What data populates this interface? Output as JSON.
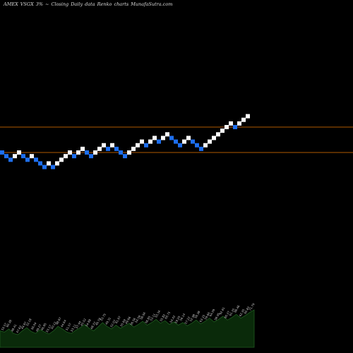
{
  "header": {
    "exchange": "AMEX",
    "symbol": "VSGX",
    "pct": "3%",
    "arrow": "~",
    "mode": "Closing",
    "period": "Daily",
    "kind": "data",
    "chart_word": "Renko",
    "site_word": "charts",
    "site": "MunafaSutra.com"
  },
  "colors": {
    "background": "#000000",
    "up_brick": "#ffffff",
    "down_brick": "#1e6ff0",
    "reference_line": "#b05a00",
    "volume_fill": "#0a2a0a",
    "volume_stroke": "#1f5a1f",
    "volume_label": "#cfcfcf"
  },
  "chart_data": {
    "type": "renko",
    "title": "",
    "xlabel": "",
    "ylabel": "",
    "grid": false,
    "reference_lines": [
      57.6,
      56.2
    ],
    "bricks": [
      {
        "level": 56.2,
        "dir": "down"
      },
      {
        "level": 56.0,
        "dir": "down"
      },
      {
        "level": 55.8,
        "dir": "down"
      },
      {
        "level": 56.0,
        "dir": "up"
      },
      {
        "level": 56.2,
        "dir": "up"
      },
      {
        "level": 56.0,
        "dir": "down"
      },
      {
        "level": 55.8,
        "dir": "down"
      },
      {
        "level": 56.0,
        "dir": "up"
      },
      {
        "level": 55.8,
        "dir": "down"
      },
      {
        "level": 55.6,
        "dir": "down"
      },
      {
        "level": 55.4,
        "dir": "down"
      },
      {
        "level": 55.6,
        "dir": "up"
      },
      {
        "level": 55.4,
        "dir": "down"
      },
      {
        "level": 55.6,
        "dir": "up"
      },
      {
        "level": 55.8,
        "dir": "up"
      },
      {
        "level": 56.0,
        "dir": "up"
      },
      {
        "level": 56.2,
        "dir": "up"
      },
      {
        "level": 56.0,
        "dir": "down"
      },
      {
        "level": 56.2,
        "dir": "up"
      },
      {
        "level": 56.4,
        "dir": "up"
      },
      {
        "level": 56.2,
        "dir": "down"
      },
      {
        "level": 56.0,
        "dir": "down"
      },
      {
        "level": 56.2,
        "dir": "up"
      },
      {
        "level": 56.4,
        "dir": "up"
      },
      {
        "level": 56.6,
        "dir": "up"
      },
      {
        "level": 56.4,
        "dir": "down"
      },
      {
        "level": 56.6,
        "dir": "up"
      },
      {
        "level": 56.4,
        "dir": "down"
      },
      {
        "level": 56.2,
        "dir": "down"
      },
      {
        "level": 56.0,
        "dir": "down"
      },
      {
        "level": 56.2,
        "dir": "up"
      },
      {
        "level": 56.4,
        "dir": "up"
      },
      {
        "level": 56.6,
        "dir": "up"
      },
      {
        "level": 56.8,
        "dir": "up"
      },
      {
        "level": 56.6,
        "dir": "down"
      },
      {
        "level": 56.8,
        "dir": "up"
      },
      {
        "level": 57.0,
        "dir": "up"
      },
      {
        "level": 56.8,
        "dir": "down"
      },
      {
        "level": 57.0,
        "dir": "up"
      },
      {
        "level": 57.2,
        "dir": "up"
      },
      {
        "level": 57.0,
        "dir": "down"
      },
      {
        "level": 56.8,
        "dir": "down"
      },
      {
        "level": 56.6,
        "dir": "down"
      },
      {
        "level": 56.8,
        "dir": "up"
      },
      {
        "level": 57.0,
        "dir": "up"
      },
      {
        "level": 56.8,
        "dir": "down"
      },
      {
        "level": 56.6,
        "dir": "down"
      },
      {
        "level": 56.4,
        "dir": "down"
      },
      {
        "level": 56.6,
        "dir": "up"
      },
      {
        "level": 56.8,
        "dir": "up"
      },
      {
        "level": 57.0,
        "dir": "up"
      },
      {
        "level": 57.2,
        "dir": "up"
      },
      {
        "level": 57.4,
        "dir": "up"
      },
      {
        "level": 57.6,
        "dir": "up"
      },
      {
        "level": 57.8,
        "dir": "up"
      },
      {
        "level": 57.6,
        "dir": "down"
      },
      {
        "level": 57.8,
        "dir": "up"
      },
      {
        "level": 58.0,
        "dir": "up"
      },
      {
        "level": 58.2,
        "dir": "up"
      }
    ],
    "volume": [
      2.6,
      2.4,
      2.9,
      2.2,
      2.0,
      2.6,
      3.1,
      2.5,
      2.2,
      2.8,
      2.4,
      2.1,
      2.6,
      3.3,
      2.9,
      2.4,
      2.2,
      2.7,
      3.1,
      3.6,
      3.0,
      2.6,
      3.2,
      3.9,
      3.3,
      2.9,
      3.5,
      3.0,
      3.4,
      3.8,
      3.2,
      3.6,
      4.1,
      3.5,
      3.9,
      4.4,
      3.8,
      4.2,
      3.6,
      4.0,
      3.5,
      3.9,
      3.4,
      3.8,
      4.3,
      3.7,
      4.1,
      4.6,
      4.0,
      4.4,
      4.9,
      4.3,
      4.7,
      5.2,
      4.6,
      5.0,
      5.5,
      5.9
    ],
    "volume_labels": [
      "53.57",
      "60.38",
      "48.41",
      "47.63",
      "44.97",
      "52.18",
      "56.04",
      "49.27",
      "46.85",
      "53.17",
      "50.12",
      "48.67",
      "44.64",
      "51.57",
      "53.11",
      "57.44",
      "45.52",
      "54.88",
      "48.37",
      "46.78",
      "53.75",
      "49.31",
      "52.07",
      "61.67",
      "55.69",
      "49.66",
      "56.56",
      "54.59",
      "58.94",
      "56.85",
      "53.11",
      "50.34",
      "55.82",
      "60.75",
      "54.42",
      "59.20",
      "56.14",
      "57.22",
      "52.98",
      "56.38",
      "63.15",
      "59.84",
      "64.09",
      "58.95",
      "62.61",
      "60.27",
      "61.25",
      "66.46",
      "62.35",
      "65.83",
      "71.79"
    ]
  }
}
